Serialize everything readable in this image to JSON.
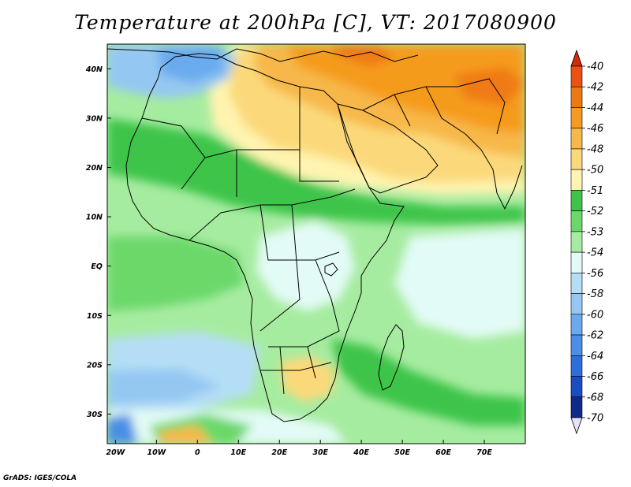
{
  "title": "Temperature at 200hPa [C], VT: 2017080900",
  "footer": "GrADS: IGES/COLA",
  "map": {
    "lon_range": [
      -22,
      80
    ],
    "lat_range": [
      -36,
      45
    ],
    "x_ticks": [
      {
        "value": -20,
        "label": "20W"
      },
      {
        "value": -10,
        "label": "10W"
      },
      {
        "value": 0,
        "label": "0"
      },
      {
        "value": 10,
        "label": "10E"
      },
      {
        "value": 20,
        "label": "20E"
      },
      {
        "value": 30,
        "label": "30E"
      },
      {
        "value": 40,
        "label": "40E"
      },
      {
        "value": 50,
        "label": "50E"
      },
      {
        "value": 60,
        "label": "60E"
      },
      {
        "value": 70,
        "label": "70E"
      }
    ],
    "y_ticks": [
      {
        "value": 40,
        "label": "40N"
      },
      {
        "value": 30,
        "label": "30N"
      },
      {
        "value": 20,
        "label": "20N"
      },
      {
        "value": 10,
        "label": "10N"
      },
      {
        "value": 0,
        "label": "EQ"
      },
      {
        "value": -10,
        "label": "10S"
      },
      {
        "value": -20,
        "label": "20S"
      },
      {
        "value": -30,
        "label": "30S"
      }
    ]
  },
  "colorbar": {
    "levels": [
      {
        "label": "-40",
        "color": "#d42a0a"
      },
      {
        "label": "-42",
        "color": "#f0500f"
      },
      {
        "label": "-44",
        "color": "#f07a12"
      },
      {
        "label": "-46",
        "color": "#f59b1f"
      },
      {
        "label": "-48",
        "color": "#f7b84a"
      },
      {
        "label": "-50",
        "color": "#fbd97a"
      },
      {
        "label": "-51",
        "color": "#fff4b0"
      },
      {
        "label": "-52",
        "color": "#3ec44a"
      },
      {
        "label": "-53",
        "color": "#6cd86a"
      },
      {
        "label": "-54",
        "color": "#a6eca0"
      },
      {
        "label": "-56",
        "color": "#e2fbf6"
      },
      {
        "label": "-58",
        "color": "#b5def6"
      },
      {
        "label": "-60",
        "color": "#94c8f2"
      },
      {
        "label": "-62",
        "color": "#6aaaee"
      },
      {
        "label": "-64",
        "color": "#4a8ee6"
      },
      {
        "label": "-66",
        "color": "#2c6fdc"
      },
      {
        "label": "-68",
        "color": "#1a4cc2"
      },
      {
        "label": "-70",
        "color": "#102a8a"
      }
    ],
    "bottom_color": "#102a8a",
    "under_color": "#e8e2f8"
  },
  "colors": {
    "orange": "#f59b1f",
    "dark_orange": "#f07a12",
    "light_orange": "#f7b84a",
    "yellow": "#fbd97a",
    "pale_yellow": "#fff4b0",
    "green": "#3ec44a",
    "mid_green": "#6cd86a",
    "light_green": "#a6eca0",
    "pale_cyan": "#e2fbf6",
    "light_blue": "#b5def6",
    "blue": "#94c8f2",
    "mid_blue": "#6aaaee",
    "dark_blue": "#4a8ee6",
    "coast": "#000000"
  }
}
